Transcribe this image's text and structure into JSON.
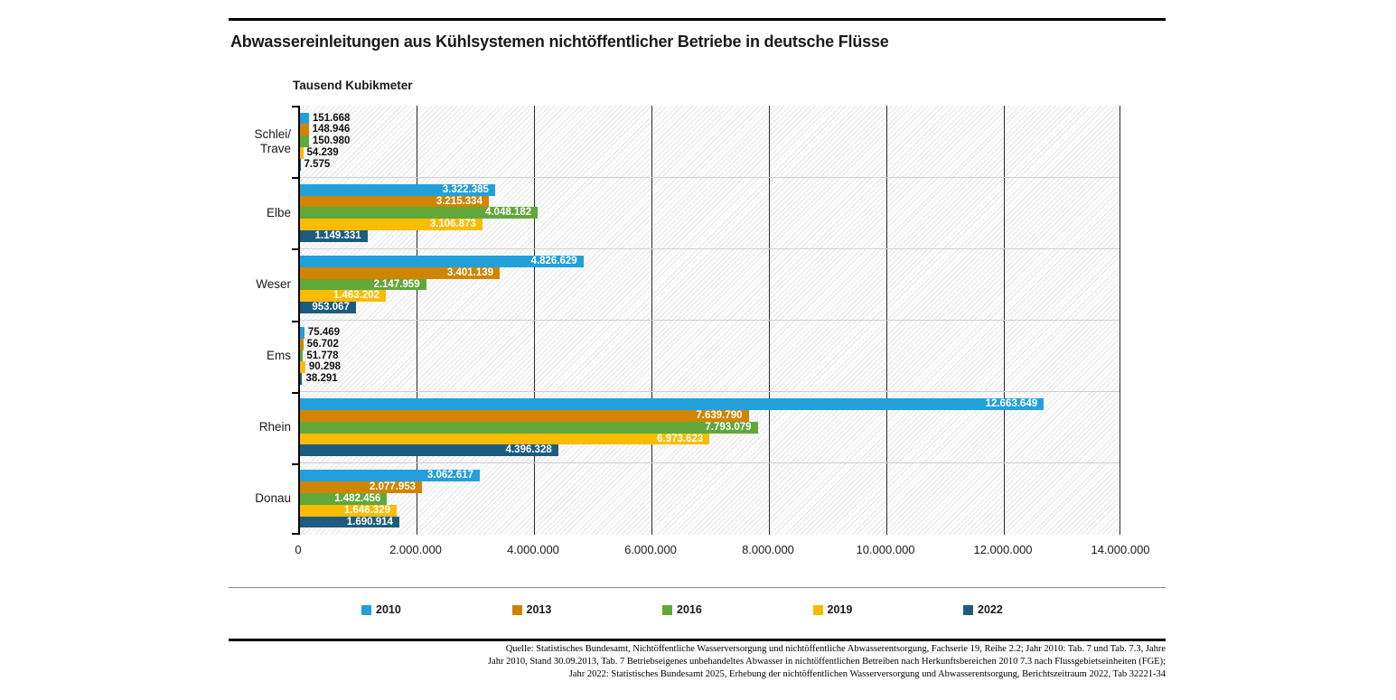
{
  "header": {
    "title": "Abwassereinleitungen aus Kühlsystemen nichtöffentlicher Betriebe in deutsche Flüsse",
    "axis_unit_label": "Tausend Kubikmeter"
  },
  "chart_data": {
    "type": "bar",
    "orientation": "horizontal",
    "title": "Abwassereinleitungen aus Kühlsystemen nichtöffentlicher Betriebe in deutsche Flüsse",
    "xlabel": "Tausend Kubikmeter",
    "ylabel": "",
    "xlim": [
      0,
      14000000
    ],
    "grid": "vertical",
    "legend_position": "bottom",
    "categories": [
      "Schlei/Trave",
      "Elbe",
      "Weser",
      "Ems",
      "Rhein",
      "Donau"
    ],
    "category_label_lines": [
      [
        "Schlei/",
        "Trave"
      ],
      [
        "Elbe"
      ],
      [
        "Weser"
      ],
      [
        "Ems"
      ],
      [
        "Rhein"
      ],
      [
        "Donau"
      ]
    ],
    "series": [
      {
        "name": "2010",
        "color": "#22A0DB",
        "values": [
          151668,
          3322385,
          4826629,
          75469,
          12663649,
          3062617
        ]
      },
      {
        "name": "2013",
        "color": "#D18400",
        "values": [
          148946,
          3215334,
          3401139,
          56702,
          7639790,
          2077953
        ]
      },
      {
        "name": "2016",
        "color": "#61A838",
        "values": [
          150980,
          4048182,
          2147959,
          51778,
          7793079,
          1482456
        ]
      },
      {
        "name": "2019",
        "color": "#FBBB00",
        "values": [
          54239,
          3106873,
          1463202,
          90298,
          6973623,
          1646329
        ]
      },
      {
        "name": "2022",
        "color": "#1D5C7F",
        "values": [
          7575,
          1149331,
          953067,
          38291,
          4396328,
          1690914
        ]
      }
    ],
    "x_ticks": [
      {
        "label": "0",
        "value": 0
      },
      {
        "label": "2.000.000",
        "value": 2000000
      },
      {
        "label": "4.000.000",
        "value": 4000000
      },
      {
        "label": "6.000.000",
        "value": 6000000
      },
      {
        "label": "8.000.000",
        "value": 8000000
      },
      {
        "label": "10.000.000",
        "value": 10000000
      },
      {
        "label": "12.000.000",
        "value": 12000000
      },
      {
        "label": "14.000.000",
        "value": 14000000
      }
    ]
  },
  "source": {
    "lines": [
      "Quelle: Statistisches Bundesamt, Nichtöffentliche Wasserversorgung und nichtöffentliche Abwasserentsorgung,  Fachserie 19, Reihe 2.2; Jahr 2010: Tab. 7 und Tab. 7.3, Jahre",
      "Jahr 2010, Stand 30.09.2013, Tab. 7 Betriebseigenes unbehandeltes Abwasser in nichtöffentlichen Betreiben nach Herkunftsbereichen 2010 7.3 nach Flussgebietseinheiten (FGE);",
      "Jahr 2022: Statistisches Bundesamt 2025, Erhebung der nichtöffentlichen Wasserversorgung und Abwasserentsorgung, Berichtszeitraum 2022, Tab 32221-34"
    ]
  }
}
